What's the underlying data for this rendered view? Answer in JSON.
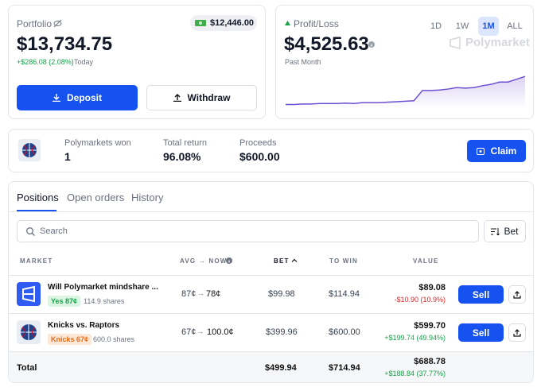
{
  "portfolio": {
    "label": "Portfolio",
    "cash": "$12,446.00",
    "value": "$13,734.75",
    "change": "+$286.08 (2.08%)",
    "period": "Today",
    "deposit": "Deposit",
    "withdraw": "Withdraw"
  },
  "profit_loss": {
    "label": "Profit/Loss",
    "ranges": [
      "1D",
      "1W",
      "1M",
      "ALL"
    ],
    "active_range": 2,
    "value": "$4,525.63",
    "brand": "Polymarket",
    "period": "Past Month",
    "chart": {
      "type": "line",
      "color": "#6d4fd1",
      "ylim": [
        0,
        34
      ],
      "values": [
        3,
        3,
        3.5,
        3.5,
        4,
        4,
        4,
        4.5,
        4,
        5,
        5,
        5,
        5.5,
        6,
        6.5,
        7,
        18,
        18,
        18.5,
        19.5,
        21,
        20.5,
        21,
        23,
        24.5,
        27,
        27,
        30,
        33
      ]
    }
  },
  "claim": {
    "stats": [
      {
        "label": "Polymarkets won",
        "value": "1"
      },
      {
        "label": "Total return",
        "value": "96.08%"
      },
      {
        "label": "Proceeds",
        "value": "$600.00"
      }
    ],
    "button": "Claim"
  },
  "tabs": {
    "items": [
      "Positions",
      "Open orders",
      "History"
    ],
    "active": 0
  },
  "search": {
    "placeholder": "Search",
    "sort": "Bet"
  },
  "table": {
    "headers": [
      "MARKET",
      "AVG → NOW",
      "BET",
      "TO WIN",
      "VALUE"
    ],
    "rows": [
      {
        "title": "Will Polymarket mindshare ...",
        "outcome": "Yes 87¢",
        "shares": "114.9 shares",
        "avg": "87¢",
        "now": "78¢",
        "bet": "$99.98",
        "to_win": "$114.94",
        "value": "$89.08",
        "pnl": "-$10.90 (10.9%)",
        "action": "Sell"
      },
      {
        "title": "Knicks vs. Raptors",
        "outcome": "Knicks 67¢",
        "shares": "600.0 shares",
        "avg": "67¢",
        "now": "100.0¢",
        "bet": "$399.96",
        "to_win": "$600.00",
        "value": "$599.70",
        "pnl": "+$199.74 (49.94%)",
        "action": "Sell"
      }
    ],
    "total": {
      "label": "Total",
      "bet": "$499.94",
      "to_win": "$714.94",
      "value": "$688.78",
      "pnl": "+$188.84 (37.77%)"
    }
  }
}
